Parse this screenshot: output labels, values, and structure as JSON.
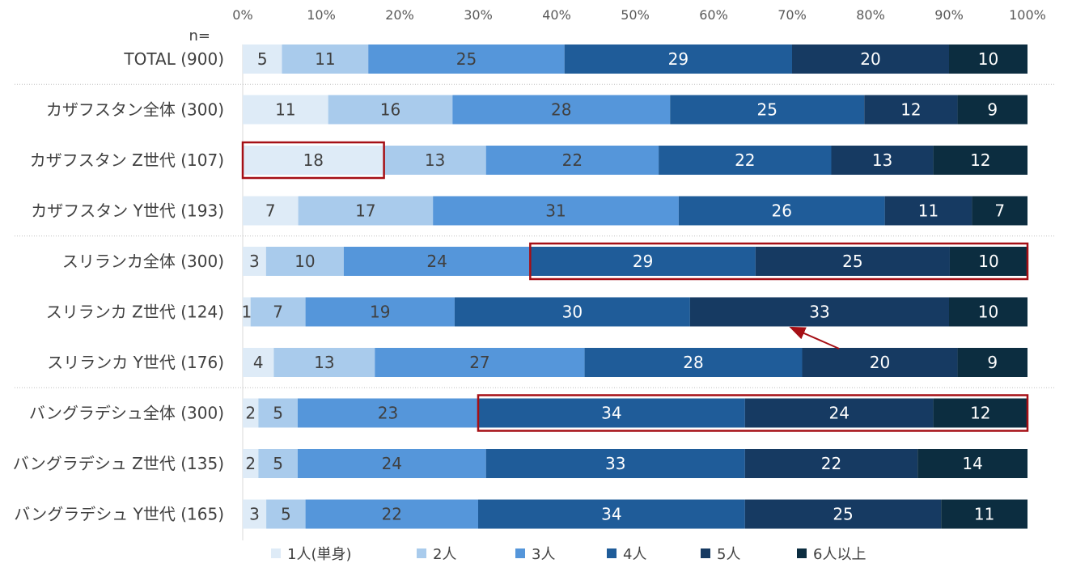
{
  "chart_data": {
    "type": "bar",
    "orientation": "horizontal",
    "stacked": "percent",
    "n_label": "n=",
    "xlim": [
      0,
      100
    ],
    "ticks": [
      "0%",
      "10%",
      "20%",
      "30%",
      "40%",
      "50%",
      "60%",
      "70%",
      "80%",
      "90%",
      "100%"
    ],
    "categories": [
      "TOTAL (900)",
      "カザフスタン全体 (300)",
      "カザフスタン Z世代 (107)",
      "カザフスタン Y世代 (193)",
      "スリランカ全体 (300)",
      "スリランカ Z世代 (124)",
      "スリランカ Y世代 (176)",
      "バングラデシュ全体 (300)",
      "バングラデシュ Z世代 (135)",
      "バングラデシュ Y世代 (165)"
    ],
    "series": [
      {
        "name": "1人(単身)",
        "color": "#deebf7",
        "values": [
          5,
          11,
          18,
          7,
          3,
          1,
          4,
          2,
          2,
          3
        ]
      },
      {
        "name": "2人",
        "color": "#a9cbec",
        "values": [
          11,
          16,
          13,
          17,
          10,
          7,
          13,
          5,
          5,
          5
        ]
      },
      {
        "name": "3人",
        "color": "#5596da",
        "values": [
          25,
          28,
          22,
          31,
          24,
          19,
          27,
          23,
          24,
          22
        ]
      },
      {
        "name": "4人",
        "color": "#1f5c99",
        "values": [
          29,
          25,
          22,
          26,
          29,
          30,
          28,
          34,
          33,
          34
        ]
      },
      {
        "name": "5人",
        "color": "#163a62",
        "values": [
          20,
          12,
          13,
          11,
          25,
          33,
          20,
          24,
          22,
          25
        ]
      },
      {
        "name": "6人以上",
        "color": "#0c2d40",
        "values": [
          10,
          9,
          12,
          7,
          10,
          10,
          9,
          12,
          14,
          11
        ]
      }
    ],
    "group_separators_after": [
      0,
      3,
      6
    ],
    "highlights": [
      {
        "row": 2,
        "from_series": 0,
        "to_series": 0
      },
      {
        "row": 4,
        "from_series": 3,
        "to_series": 5
      },
      {
        "row": 7,
        "from_series": 3,
        "to_series": 5
      }
    ],
    "highlight_color": "#a50f15",
    "arrow": {
      "from_row": 6,
      "from_value": 76,
      "to_row": 5,
      "to_value": 70
    },
    "legend_position": "bottom",
    "grid": false
  }
}
